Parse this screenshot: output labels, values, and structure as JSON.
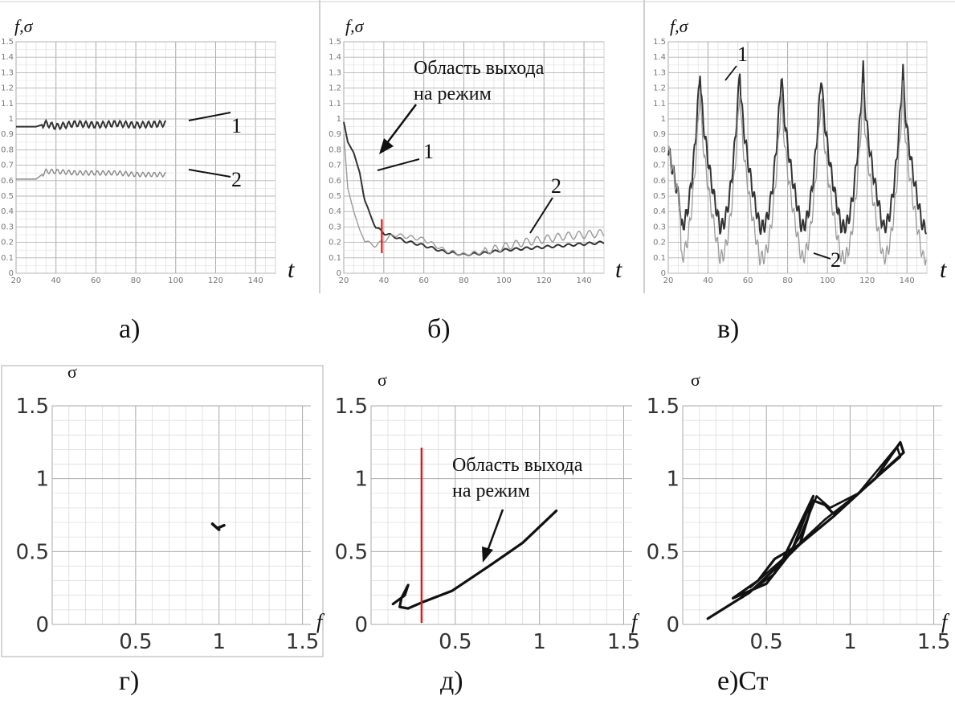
{
  "captions": [
    "а)",
    "б)",
    "в)",
    "г)",
    "д)",
    "е)Ст"
  ],
  "time_panels": [
    {
      "id": "a",
      "ylabel": "f,σ",
      "xlabel": "t",
      "xlim": [
        20,
        150
      ],
      "ylim": [
        0,
        1.5
      ],
      "x_ticks": [
        "20",
        "40",
        "60",
        "80",
        "100",
        "120",
        "140"
      ],
      "y_ticks": [
        "0",
        "0.1",
        "0.2",
        "0.3",
        "0.4",
        "0.5",
        "0.6",
        "0.7",
        "0.8",
        "0.9",
        "1",
        "1.1",
        "1.2",
        "1.3",
        "1.4",
        "1.5"
      ],
      "series_labels": [
        "1",
        "2"
      ]
    },
    {
      "id": "b",
      "ylabel": "f,σ",
      "xlabel": "t",
      "xlim": [
        20,
        150
      ],
      "ylim": [
        0,
        1.5
      ],
      "x_ticks": [
        "20",
        "40",
        "60",
        "80",
        "100",
        "120",
        "140"
      ],
      "y_ticks": [
        "0",
        "0.1",
        "0.2",
        "0.3",
        "0.4",
        "0.5",
        "0.6",
        "0.7",
        "0.8",
        "0.9",
        "1",
        "1.1",
        "1.2",
        "1.3",
        "1.4",
        "1.5"
      ],
      "series_labels": [
        "1",
        "2"
      ],
      "annotation": [
        "Область выхода",
        "на режим"
      ]
    },
    {
      "id": "c",
      "ylabel": "f,σ",
      "xlabel": "t",
      "xlim": [
        20,
        150
      ],
      "ylim": [
        0,
        1.5
      ],
      "x_ticks": [
        "20",
        "40",
        "60",
        "80",
        "100",
        "120",
        "140"
      ],
      "y_ticks": [
        "0",
        "0.1",
        "0.2",
        "0.3",
        "0.4",
        "0.5",
        "0.6",
        "0.7",
        "0.8",
        "0.9",
        "1",
        "1.1",
        "1.2",
        "1.3",
        "1.4",
        "1.5"
      ],
      "series_labels": [
        "1",
        "2"
      ]
    }
  ],
  "phase_panels": [
    {
      "id": "d",
      "ylabel": "σ",
      "xlabel": "f",
      "x_ticks": [
        "0.5",
        "1",
        "1.5"
      ],
      "y_ticks": [
        "0",
        "0.5",
        "1",
        "1.5"
      ]
    },
    {
      "id": "e",
      "ylabel": "σ",
      "xlabel": "f",
      "x_ticks": [
        "0.5",
        "1",
        "1.5"
      ],
      "y_ticks": [
        "0",
        "0.5",
        "1",
        "1.5"
      ],
      "annotation": [
        "Область выхода",
        "на режим"
      ]
    },
    {
      "id": "f",
      "ylabel": "σ",
      "xlabel": "f",
      "x_ticks": [
        "0.5",
        "1",
        "1.5"
      ],
      "y_ticks": [
        "0",
        "0.5",
        "1",
        "1.5"
      ]
    }
  ],
  "chart_data": [
    {
      "type": "line",
      "panel": "а",
      "xlim": [
        20,
        150
      ],
      "ylim": [
        0,
        1.5
      ],
      "series": [
        {
          "name": "1",
          "x": [
            20,
            30,
            35,
            40,
            50,
            60,
            70,
            80,
            95
          ],
          "y": [
            0.95,
            0.95,
            0.97,
            0.95,
            0.97,
            0.96,
            0.97,
            0.96,
            0.97
          ],
          "oscillation_amplitude": 0.02
        },
        {
          "name": "2",
          "x": [
            20,
            30,
            35,
            40,
            50,
            60,
            70,
            80,
            95
          ],
          "y": [
            0.61,
            0.61,
            0.66,
            0.66,
            0.65,
            0.65,
            0.65,
            0.64,
            0.64
          ],
          "oscillation_amplitude": 0.015
        }
      ]
    },
    {
      "type": "line",
      "panel": "б",
      "xlim": [
        20,
        150
      ],
      "ylim": [
        0,
        1.5
      ],
      "marker_x": 39,
      "series": [
        {
          "name": "1",
          "x": [
            20,
            22,
            25,
            28,
            30,
            33,
            36,
            40,
            45,
            50,
            60,
            70,
            80,
            90,
            100,
            110,
            120,
            130,
            140,
            150
          ],
          "y": [
            0.98,
            0.85,
            0.78,
            0.65,
            0.5,
            0.38,
            0.3,
            0.26,
            0.24,
            0.21,
            0.18,
            0.14,
            0.12,
            0.13,
            0.15,
            0.16,
            0.17,
            0.18,
            0.19,
            0.2
          ]
        },
        {
          "name": "2",
          "x": [
            20,
            22,
            25,
            28,
            30,
            33,
            36,
            40,
            45,
            50,
            60,
            70,
            80,
            90,
            100,
            110,
            120,
            130,
            140,
            150
          ],
          "y": [
            0.9,
            0.55,
            0.4,
            0.28,
            0.22,
            0.19,
            0.18,
            0.21,
            0.25,
            0.24,
            0.22,
            0.15,
            0.12,
            0.14,
            0.17,
            0.2,
            0.22,
            0.24,
            0.25,
            0.26
          ]
        }
      ]
    },
    {
      "type": "line",
      "panel": "в",
      "xlim": [
        20,
        150
      ],
      "ylim": [
        0,
        1.5
      ],
      "series": [
        {
          "name": "1",
          "peak_t": [
            36,
            56,
            77,
            97,
            118,
            138
          ],
          "peak_value": 1.33,
          "trough_value": 0.3
        },
        {
          "name": "2",
          "peak_t": [
            36,
            56,
            77,
            97,
            118,
            138
          ],
          "peak_value": 1.2,
          "trough_value": 0.1
        }
      ]
    },
    {
      "type": "line",
      "panel": "г",
      "xlim": [
        0,
        1.5
      ],
      "ylim": [
        0,
        1.5
      ],
      "points": [
        [
          0.96,
          0.69
        ],
        [
          1.0,
          0.65
        ],
        [
          0.99,
          0.66
        ],
        [
          1.03,
          0.68
        ]
      ]
    },
    {
      "type": "line",
      "panel": "д",
      "xlim": [
        0,
        1.5
      ],
      "ylim": [
        0,
        1.5
      ],
      "marker_x": 0.3,
      "points": [
        [
          0.13,
          0.14
        ],
        [
          0.2,
          0.2
        ],
        [
          0.22,
          0.27
        ],
        [
          0.18,
          0.18
        ],
        [
          0.17,
          0.12
        ],
        [
          0.22,
          0.11
        ],
        [
          0.3,
          0.15
        ],
        [
          0.48,
          0.23
        ],
        [
          0.7,
          0.4
        ],
        [
          0.9,
          0.56
        ],
        [
          1.1,
          0.78
        ]
      ]
    },
    {
      "type": "line",
      "panel": "е",
      "xlim": [
        0,
        1.5
      ],
      "ylim": [
        0,
        1.5
      ],
      "points": [
        [
          0.15,
          0.04
        ],
        [
          0.4,
          0.22
        ],
        [
          0.55,
          0.38
        ],
        [
          0.7,
          0.55
        ],
        [
          0.78,
          0.85
        ],
        [
          0.85,
          0.82
        ],
        [
          0.9,
          0.76
        ],
        [
          1.0,
          0.85
        ],
        [
          1.15,
          1.0
        ],
        [
          1.3,
          1.25
        ],
        [
          1.32,
          1.18
        ],
        [
          1.1,
          0.95
        ],
        [
          0.9,
          0.74
        ],
        [
          0.7,
          0.55
        ],
        [
          0.55,
          0.45
        ],
        [
          0.45,
          0.3
        ],
        [
          0.3,
          0.18
        ],
        [
          0.5,
          0.28
        ],
        [
          0.65,
          0.5
        ],
        [
          0.78,
          0.88
        ],
        [
          0.6,
          0.45
        ]
      ]
    }
  ]
}
